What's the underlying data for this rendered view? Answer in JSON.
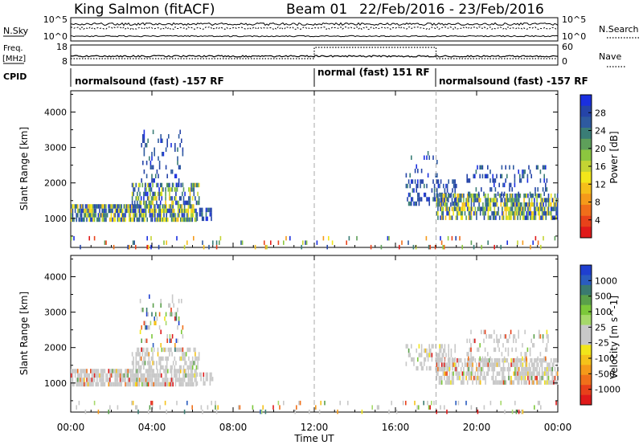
{
  "header": {
    "station": "King Salmon (fitACF)",
    "beam": "Beam 01",
    "date_range": "22/Feb/2016 - 23/Feb/2016"
  },
  "side_labels": {
    "nsky": "N.Sky",
    "nsky_top": "10^5",
    "nsky_bottom": "10^0",
    "freq_line1": "Freq.",
    "freq_line2": "[MHz]",
    "freq_top": "18",
    "freq_bottom": "8",
    "cpid": "CPID",
    "nsearch": "N.Search",
    "nsearch_top": "10^5",
    "nsearch_bottom": "10^0",
    "nave": "Nave",
    "nave_top": "60",
    "nave_bottom": "0"
  },
  "cpid_segments": [
    {
      "label": "normalsound (fast) -157 RF",
      "start_h": 0,
      "end_h": 12
    },
    {
      "label": "normal (fast) 151 RF",
      "start_h": 12,
      "end_h": 18
    },
    {
      "label": "normalsound (fast) -157 RF",
      "start_h": 18,
      "end_h": 24
    }
  ],
  "time_axis": {
    "title": "Time UT",
    "ticks": [
      "00:00",
      "04:00",
      "08:00",
      "12:00",
      "16:00",
      "20:00",
      "00:00"
    ],
    "range_hours": [
      0,
      24
    ],
    "dashed_lines_h": [
      12,
      18
    ]
  },
  "range_axis": {
    "title": "Slant Range [km]",
    "ticks": [
      1000,
      2000,
      3000,
      4000
    ],
    "range_km": [
      180,
      4600
    ]
  },
  "chart_data": [
    {
      "type": "heatmap",
      "panel": "power",
      "title": "",
      "xlabel": "",
      "ylabel": "Slant Range [km]",
      "colorbar": {
        "label": "Power [dB]",
        "ticks": [
          "4",
          "8",
          "12",
          "16",
          "20",
          "24",
          "28"
        ],
        "colors": [
          "#1a2fe0",
          "#2544a8",
          "#2e5aa0",
          "#3a7d76",
          "#5e9f5a",
          "#8cc63f",
          "#c4d433",
          "#f2e61a",
          "#f5bf1a",
          "#f59a1a",
          "#f06e1a",
          "#e8421a",
          "#e01a1a"
        ]
      },
      "echo_regions": [
        {
          "t0": 0.0,
          "t1": 6.2,
          "r0": 1000,
          "r1": 1400,
          "density": 0.8,
          "level": "strong"
        },
        {
          "t0": 3.0,
          "t1": 6.3,
          "r0": 1400,
          "r1": 2000,
          "density": 0.5,
          "level": "strong"
        },
        {
          "t0": 3.4,
          "t1": 5.5,
          "r0": 2000,
          "r1": 3500,
          "density": 0.15,
          "level": "weak"
        },
        {
          "t0": 6.2,
          "t1": 7.0,
          "r0": 1000,
          "r1": 1300,
          "density": 0.4,
          "level": "weak"
        },
        {
          "t0": 16.5,
          "t1": 19.0,
          "r0": 1400,
          "r1": 2100,
          "density": 0.4,
          "level": "weak"
        },
        {
          "t0": 16.5,
          "t1": 18.2,
          "r0": 2100,
          "r1": 2900,
          "density": 0.08,
          "level": "weak"
        },
        {
          "t0": 18.0,
          "t1": 24.0,
          "r0": 1000,
          "r1": 1700,
          "density": 0.7,
          "level": "strong"
        },
        {
          "t0": 19.5,
          "t1": 23.5,
          "r0": 1700,
          "r1": 2500,
          "density": 0.2,
          "level": "weak"
        },
        {
          "t0": 0.0,
          "t1": 24.0,
          "r0": 200,
          "r1": 500,
          "density": 0.07,
          "level": "mixed"
        }
      ]
    },
    {
      "type": "heatmap",
      "panel": "velocity",
      "title": "",
      "xlabel": "Time UT",
      "ylabel": "Slant Range [km]",
      "colorbar": {
        "label": "Velocity [m s^-1]",
        "ticks": [
          "1000",
          "500",
          "100",
          "25",
          "-25",
          "-100",
          "-500",
          "-1000"
        ],
        "colors": [
          "#1f3fd0",
          "#2a5cbf",
          "#3a7a70",
          "#5aa04a",
          "#7cc83a",
          "#a6d86a",
          "#c8c8c8",
          "#c8c8c8",
          "#f2e61a",
          "#f5c21a",
          "#f59a1a",
          "#f0701a",
          "#e8401a",
          "#e01a1a"
        ]
      },
      "echo_regions": [
        {
          "t0": 0.0,
          "t1": 6.2,
          "r0": 1000,
          "r1": 1400,
          "density": 0.8,
          "level": "ground"
        },
        {
          "t0": 3.0,
          "t1": 6.3,
          "r0": 1400,
          "r1": 2000,
          "density": 0.5,
          "level": "ground"
        },
        {
          "t0": 3.4,
          "t1": 5.5,
          "r0": 2000,
          "r1": 3500,
          "density": 0.15,
          "level": "mixed"
        },
        {
          "t0": 6.2,
          "t1": 7.0,
          "r0": 1000,
          "r1": 1300,
          "density": 0.4,
          "level": "ground"
        },
        {
          "t0": 16.5,
          "t1": 19.0,
          "r0": 1400,
          "r1": 2100,
          "density": 0.4,
          "level": "ground"
        },
        {
          "t0": 18.0,
          "t1": 24.0,
          "r0": 1000,
          "r1": 1700,
          "density": 0.7,
          "level": "ground"
        },
        {
          "t0": 19.5,
          "t1": 23.5,
          "r0": 1700,
          "r1": 2500,
          "density": 0.2,
          "level": "ground"
        },
        {
          "t0": 0.0,
          "t1": 24.0,
          "r0": 200,
          "r1": 500,
          "density": 0.07,
          "level": "mixed"
        }
      ]
    }
  ]
}
